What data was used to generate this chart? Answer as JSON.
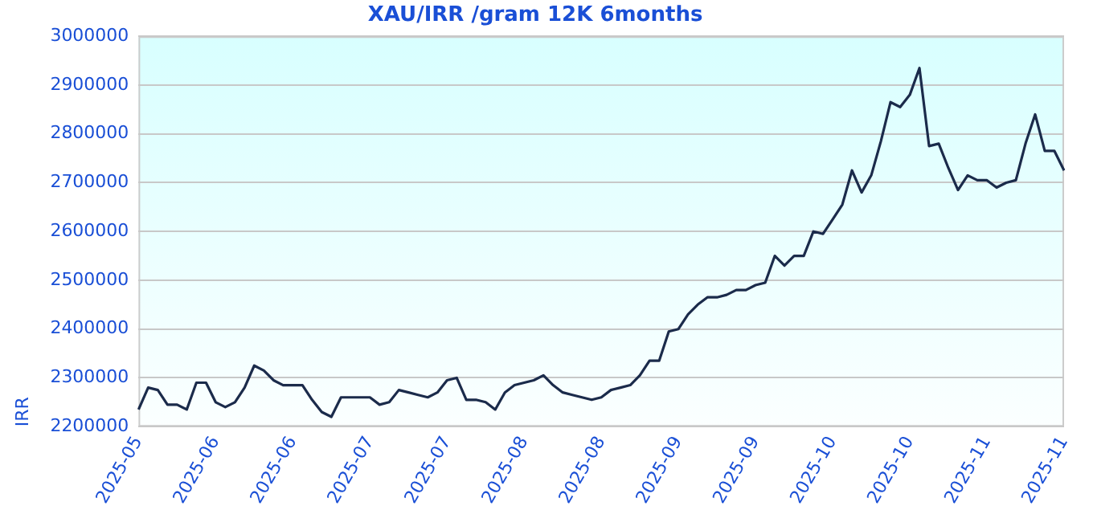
{
  "chart_data": {
    "type": "line",
    "title": "XAU/IRR /gram 12K 6months",
    "ylabel": "IRR",
    "categories": [
      "2025-05",
      null,
      null,
      null,
      null,
      null,
      null,
      null,
      "2025-06",
      null,
      null,
      null,
      null,
      null,
      null,
      null,
      "2025-06",
      null,
      null,
      null,
      null,
      null,
      null,
      null,
      "2025-07",
      null,
      null,
      null,
      null,
      null,
      null,
      null,
      "2025-07",
      null,
      null,
      null,
      null,
      null,
      null,
      null,
      "2025-08",
      null,
      null,
      null,
      null,
      null,
      null,
      null,
      "2025-08",
      null,
      null,
      null,
      null,
      null,
      null,
      null,
      "2025-09",
      null,
      null,
      null,
      null,
      null,
      null,
      null,
      "2025-09",
      null,
      null,
      null,
      null,
      null,
      null,
      null,
      "2025-10",
      null,
      null,
      null,
      null,
      null,
      null,
      null,
      "2025-10",
      null,
      null,
      null,
      null,
      null,
      null,
      null,
      "2025-11",
      null,
      null,
      null,
      null,
      null,
      null,
      null,
      "2025-11"
    ],
    "series": [
      {
        "color": "#1b2b4b",
        "values": [
          2235000,
          2280000,
          2275000,
          2245000,
          2245000,
          2235000,
          2290000,
          2290000,
          2250000,
          2240000,
          2250000,
          2280000,
          2325000,
          2315000,
          2295000,
          2285000,
          2285000,
          2285000,
          2255000,
          2230000,
          2220000,
          2260000,
          2260000,
          2260000,
          2260000,
          2245000,
          2250000,
          2275000,
          2270000,
          2265000,
          2260000,
          2270000,
          2295000,
          2300000,
          2255000,
          2255000,
          2250000,
          2235000,
          2270000,
          2285000,
          2290000,
          2295000,
          2305000,
          2285000,
          2270000,
          2265000,
          2260000,
          2255000,
          2260000,
          2275000,
          2280000,
          2285000,
          2305000,
          2335000,
          2335000,
          2395000,
          2400000,
          2430000,
          2450000,
          2465000,
          2465000,
          2470000,
          2480000,
          2480000,
          2490000,
          2495000,
          2550000,
          2530000,
          2550000,
          2550000,
          2600000,
          2595000,
          2625000,
          2655000,
          2725000,
          2680000,
          2715000,
          2785000,
          2865000,
          2855000,
          2880000,
          2935000,
          2775000,
          2780000,
          2730000,
          2685000,
          2715000,
          2705000,
          2705000,
          2690000,
          2700000,
          2705000,
          2780000,
          2840000,
          2765000,
          2765000,
          2725000
        ]
      }
    ],
    "ylim": [
      2200000,
      3000000
    ],
    "yticks": [
      2200000,
      2300000,
      2400000,
      2500000,
      2600000,
      2700000,
      2800000,
      2900000,
      3000000
    ],
    "grid": "y",
    "legend": false,
    "marker": "none",
    "line_style": "solid"
  }
}
